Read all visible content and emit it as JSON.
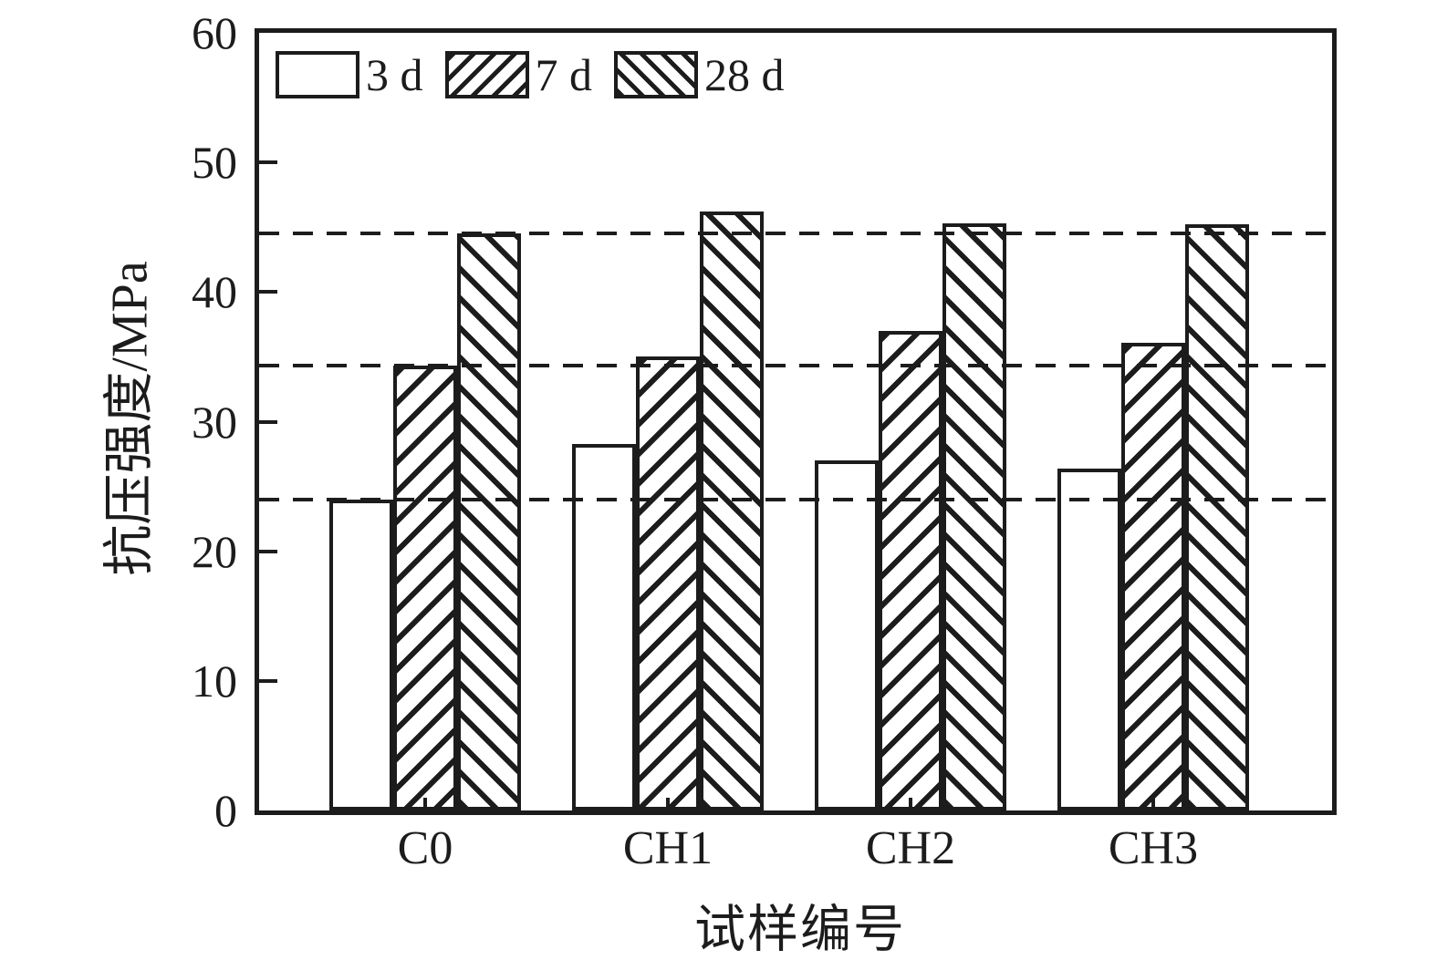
{
  "chart_data": {
    "type": "bar",
    "title": "",
    "ylabel": "抗压强度/MPa",
    "xlabel": "试样编号",
    "ylim": [
      0,
      60
    ],
    "yticks": [
      0,
      10,
      20,
      30,
      40,
      50,
      60
    ],
    "categories": [
      "C0",
      "CH1",
      "CH2",
      "CH3"
    ],
    "series": [
      {
        "name": "3 d",
        "hatch": "none",
        "values": [
          24.0,
          28.3,
          27.0,
          26.4
        ]
      },
      {
        "name": "7 d",
        "hatch": "forward-diagonal",
        "values": [
          34.3,
          35.0,
          37.0,
          36.1
        ]
      },
      {
        "name": "28 d",
        "hatch": "backward-diagonal",
        "values": [
          44.5,
          46.2,
          45.3,
          45.2
        ]
      }
    ],
    "reference_lines": [
      24.0,
      34.3,
      44.5
    ],
    "legend": {
      "position": "top-left",
      "entries": [
        "3 d",
        "7 d",
        "28 d"
      ]
    },
    "grid": false,
    "colors": {
      "ink": "#1c1c1c",
      "background": "#ffffff"
    }
  }
}
